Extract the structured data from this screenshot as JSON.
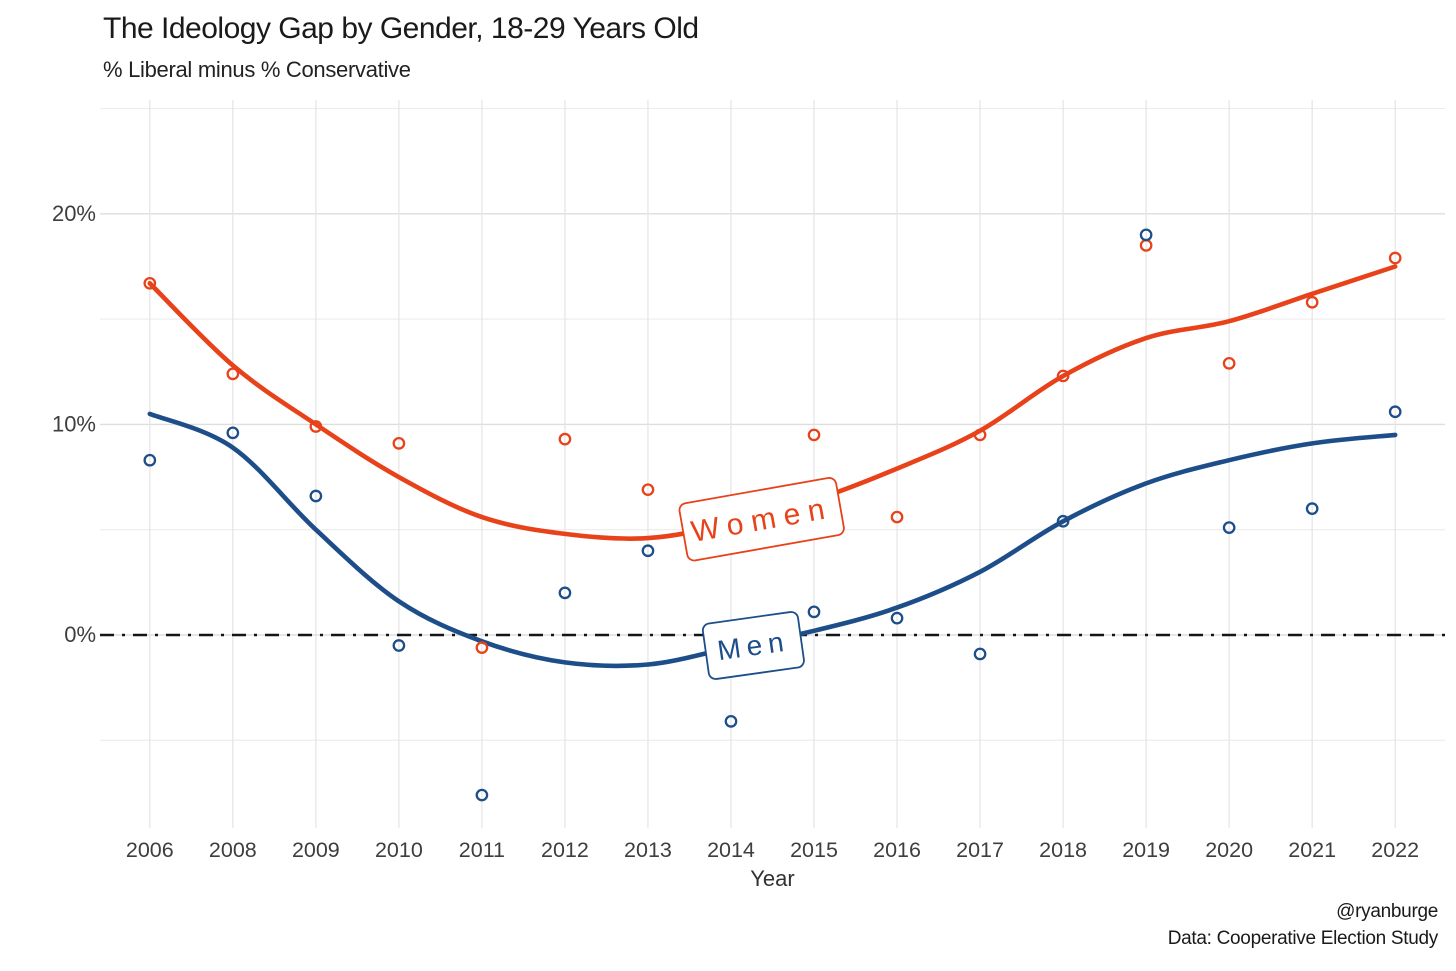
{
  "header": {
    "title": "The Ideology Gap by Gender, 18-29 Years Old",
    "subtitle": "% Liberal minus % Conservative"
  },
  "footer": {
    "handle": "@ryanburge",
    "source": "Data: Cooperative Election Study"
  },
  "chart_data": {
    "type": "scatter",
    "title": "The Ideology Gap by Gender, 18-29 Years Old",
    "subtitle": "% Liberal minus % Conservative",
    "xlabel": "Year",
    "categories": [
      "2006",
      "2008",
      "2009",
      "2010",
      "2011",
      "2012",
      "2013",
      "2014",
      "2015",
      "2016",
      "2017",
      "2018",
      "2019",
      "2020",
      "2021",
      "2022"
    ],
    "y_axis": {
      "unit": "%",
      "tick_values": [
        0,
        10,
        20
      ],
      "tick_labels": [
        "0%",
        "10%",
        "20%"
      ],
      "minor_gridline_values": [
        -5,
        5,
        15,
        25
      ],
      "ylim": [
        -9.2,
        25.4
      ],
      "grid": true
    },
    "zero_line": {
      "value": 0,
      "style": "dash-dot",
      "color": "#151515"
    },
    "series": [
      {
        "name": "Women",
        "color": "#E8421A",
        "marker": "open-circle",
        "points": [
          16.7,
          12.4,
          9.9,
          9.1,
          -0.6,
          9.3,
          6.9,
          null,
          9.5,
          5.6,
          9.5,
          12.3,
          18.5,
          12.9,
          15.8,
          17.9
        ],
        "trend": [
          16.7,
          12.8,
          10.0,
          7.5,
          5.6,
          4.8,
          4.6,
          5.3,
          6.4,
          7.9,
          9.7,
          12.3,
          14.1,
          14.9,
          16.2,
          17.5
        ],
        "label": {
          "text": "Women",
          "x_index": 7.37,
          "y_value": 5.5,
          "rotation_deg": -10
        }
      },
      {
        "name": "Men",
        "color": "#1D4E89",
        "marker": "open-circle",
        "points": [
          8.3,
          9.6,
          6.6,
          -0.5,
          -7.6,
          2.0,
          4.0,
          -4.1,
          1.1,
          0.8,
          -0.9,
          5.4,
          19.0,
          5.1,
          6.0,
          10.6
        ],
        "trend": [
          10.5,
          8.9,
          5.0,
          1.6,
          -0.3,
          -1.3,
          -1.4,
          -0.6,
          0.2,
          1.3,
          3.0,
          5.4,
          7.2,
          8.3,
          9.1,
          9.5
        ],
        "label": {
          "text": "Men",
          "x_index": 7.27,
          "y_value": -0.5,
          "rotation_deg": -8
        }
      }
    ],
    "legend_position": "inline-labels"
  }
}
